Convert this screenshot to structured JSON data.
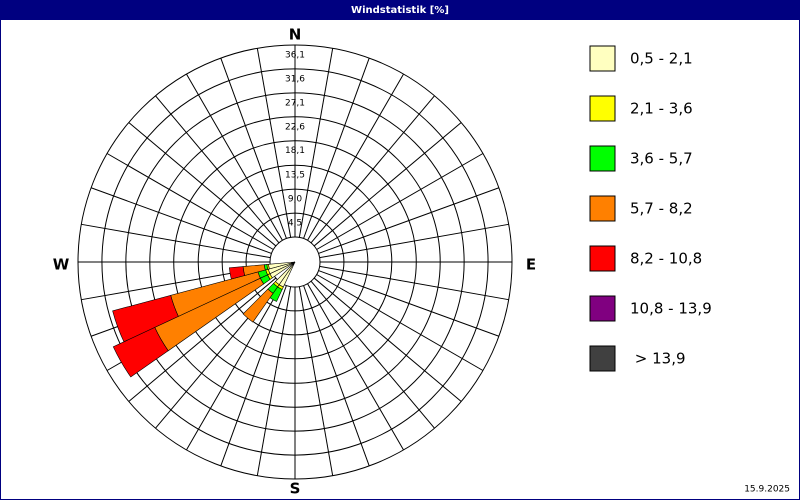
{
  "chart_data": {
    "type": "windrose",
    "title": "Windstatistik [%]",
    "compass": [
      "N",
      "E",
      "S",
      "W"
    ],
    "rlim": [
      0,
      36.1
    ],
    "rticks": [
      {
        "value": 4.5,
        "label": "4,5"
      },
      {
        "value": 9.0,
        "label": "9,0"
      },
      {
        "value": 13.5,
        "label": "13,5"
      },
      {
        "value": 18.1,
        "label": "18,1"
      },
      {
        "value": 22.6,
        "label": "22,6"
      },
      {
        "value": 27.1,
        "label": "27,1"
      },
      {
        "value": 31.6,
        "label": "31,6"
      },
      {
        "value": 36.1,
        "label": "36,1"
      }
    ],
    "x": [
      210,
      220,
      240,
      250,
      260
    ],
    "series": [
      {
        "name": "0,5 - 2,1",
        "color": "#ffffc0",
        "values": [
          0.5,
          0.5,
          0.5,
          0.5,
          0.3
        ]
      },
      {
        "name": "2,1 - 3,6",
        "color": "#ffff00",
        "values": [
          0.5,
          0.5,
          0.5,
          0.5,
          0.3
        ]
      },
      {
        "name": "3,6 - 5,7",
        "color": "#00ff00",
        "values": [
          2.5,
          1.5,
          1.5,
          1.5,
          0.5
        ]
      },
      {
        "name": "5,7 - 8,2",
        "color": "#ff8000",
        "values": [
          0,
          6.6,
          21.9,
          17.0,
          4.0
        ]
      },
      {
        "name": "8,2 - 10,8",
        "color": "#ff0000",
        "values": [
          0,
          0,
          8.6,
          11.3,
          2.6
        ]
      },
      {
        "name": "10,8 - 13,9",
        "color": "#800080",
        "values": [
          0,
          0,
          0,
          0,
          0
        ]
      },
      {
        "name": " > 13,9",
        "color": "#404040",
        "values": [
          0,
          0,
          0,
          0,
          0
        ]
      }
    ]
  },
  "footer": {
    "date": "15.9.2025"
  }
}
